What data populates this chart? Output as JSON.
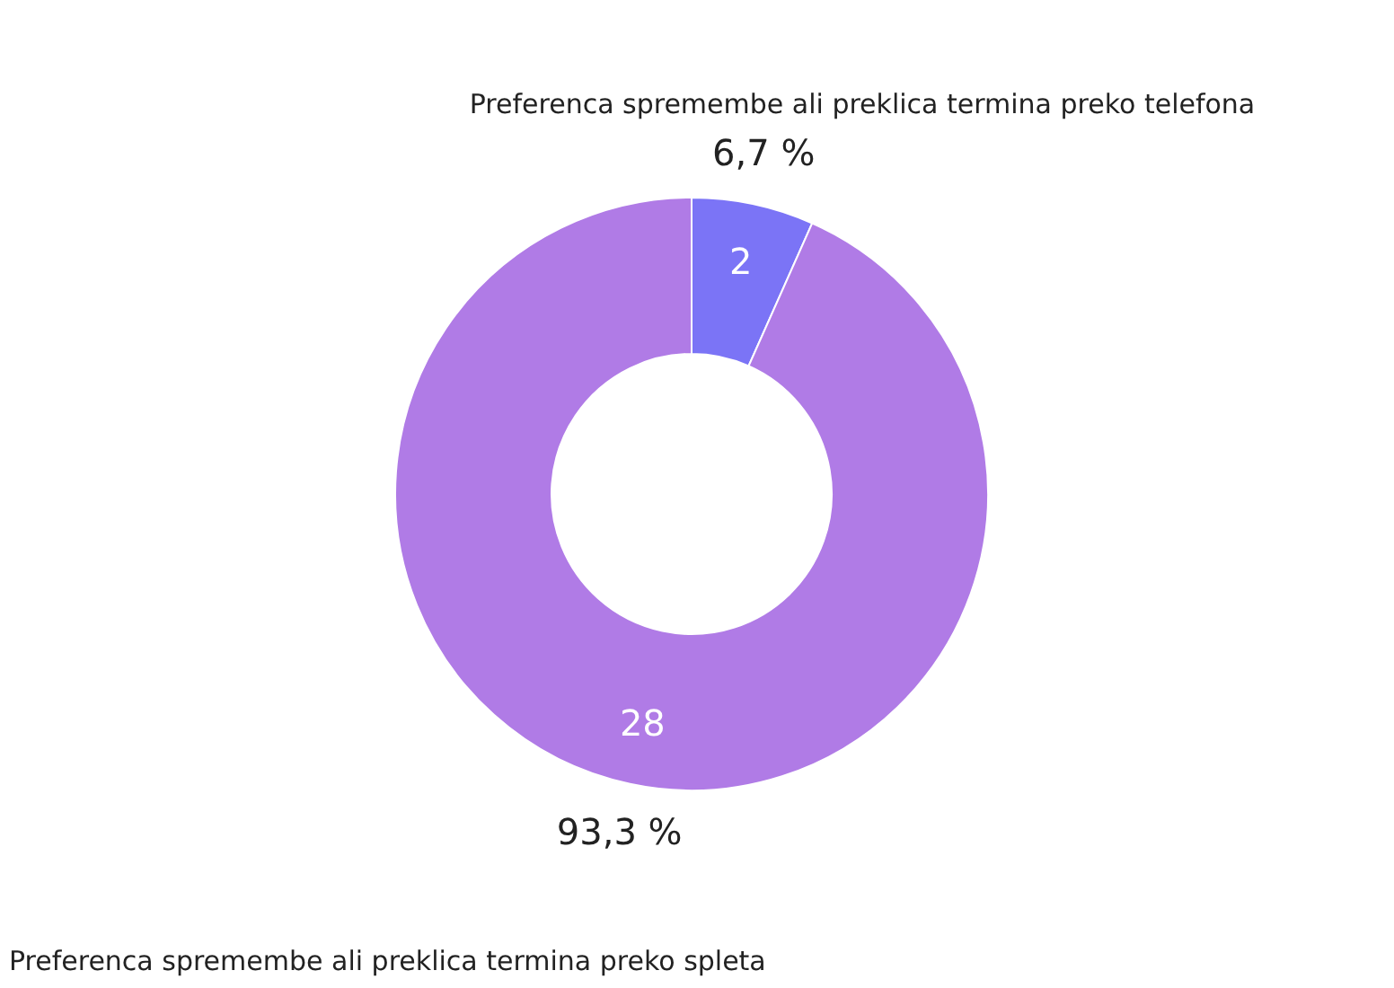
{
  "chart_data": {
    "type": "donut",
    "categories": [
      "Preferenca spremembe ali preklica termina preko telefona",
      "Preferenca spremembe ali preklica termina preko spleta"
    ],
    "values": [
      2,
      28
    ],
    "colors": [
      "#7b74f6",
      "#b07be6"
    ],
    "data_labels": true,
    "annotations": [
      "6,7 %",
      "93,3 %"
    ]
  }
}
